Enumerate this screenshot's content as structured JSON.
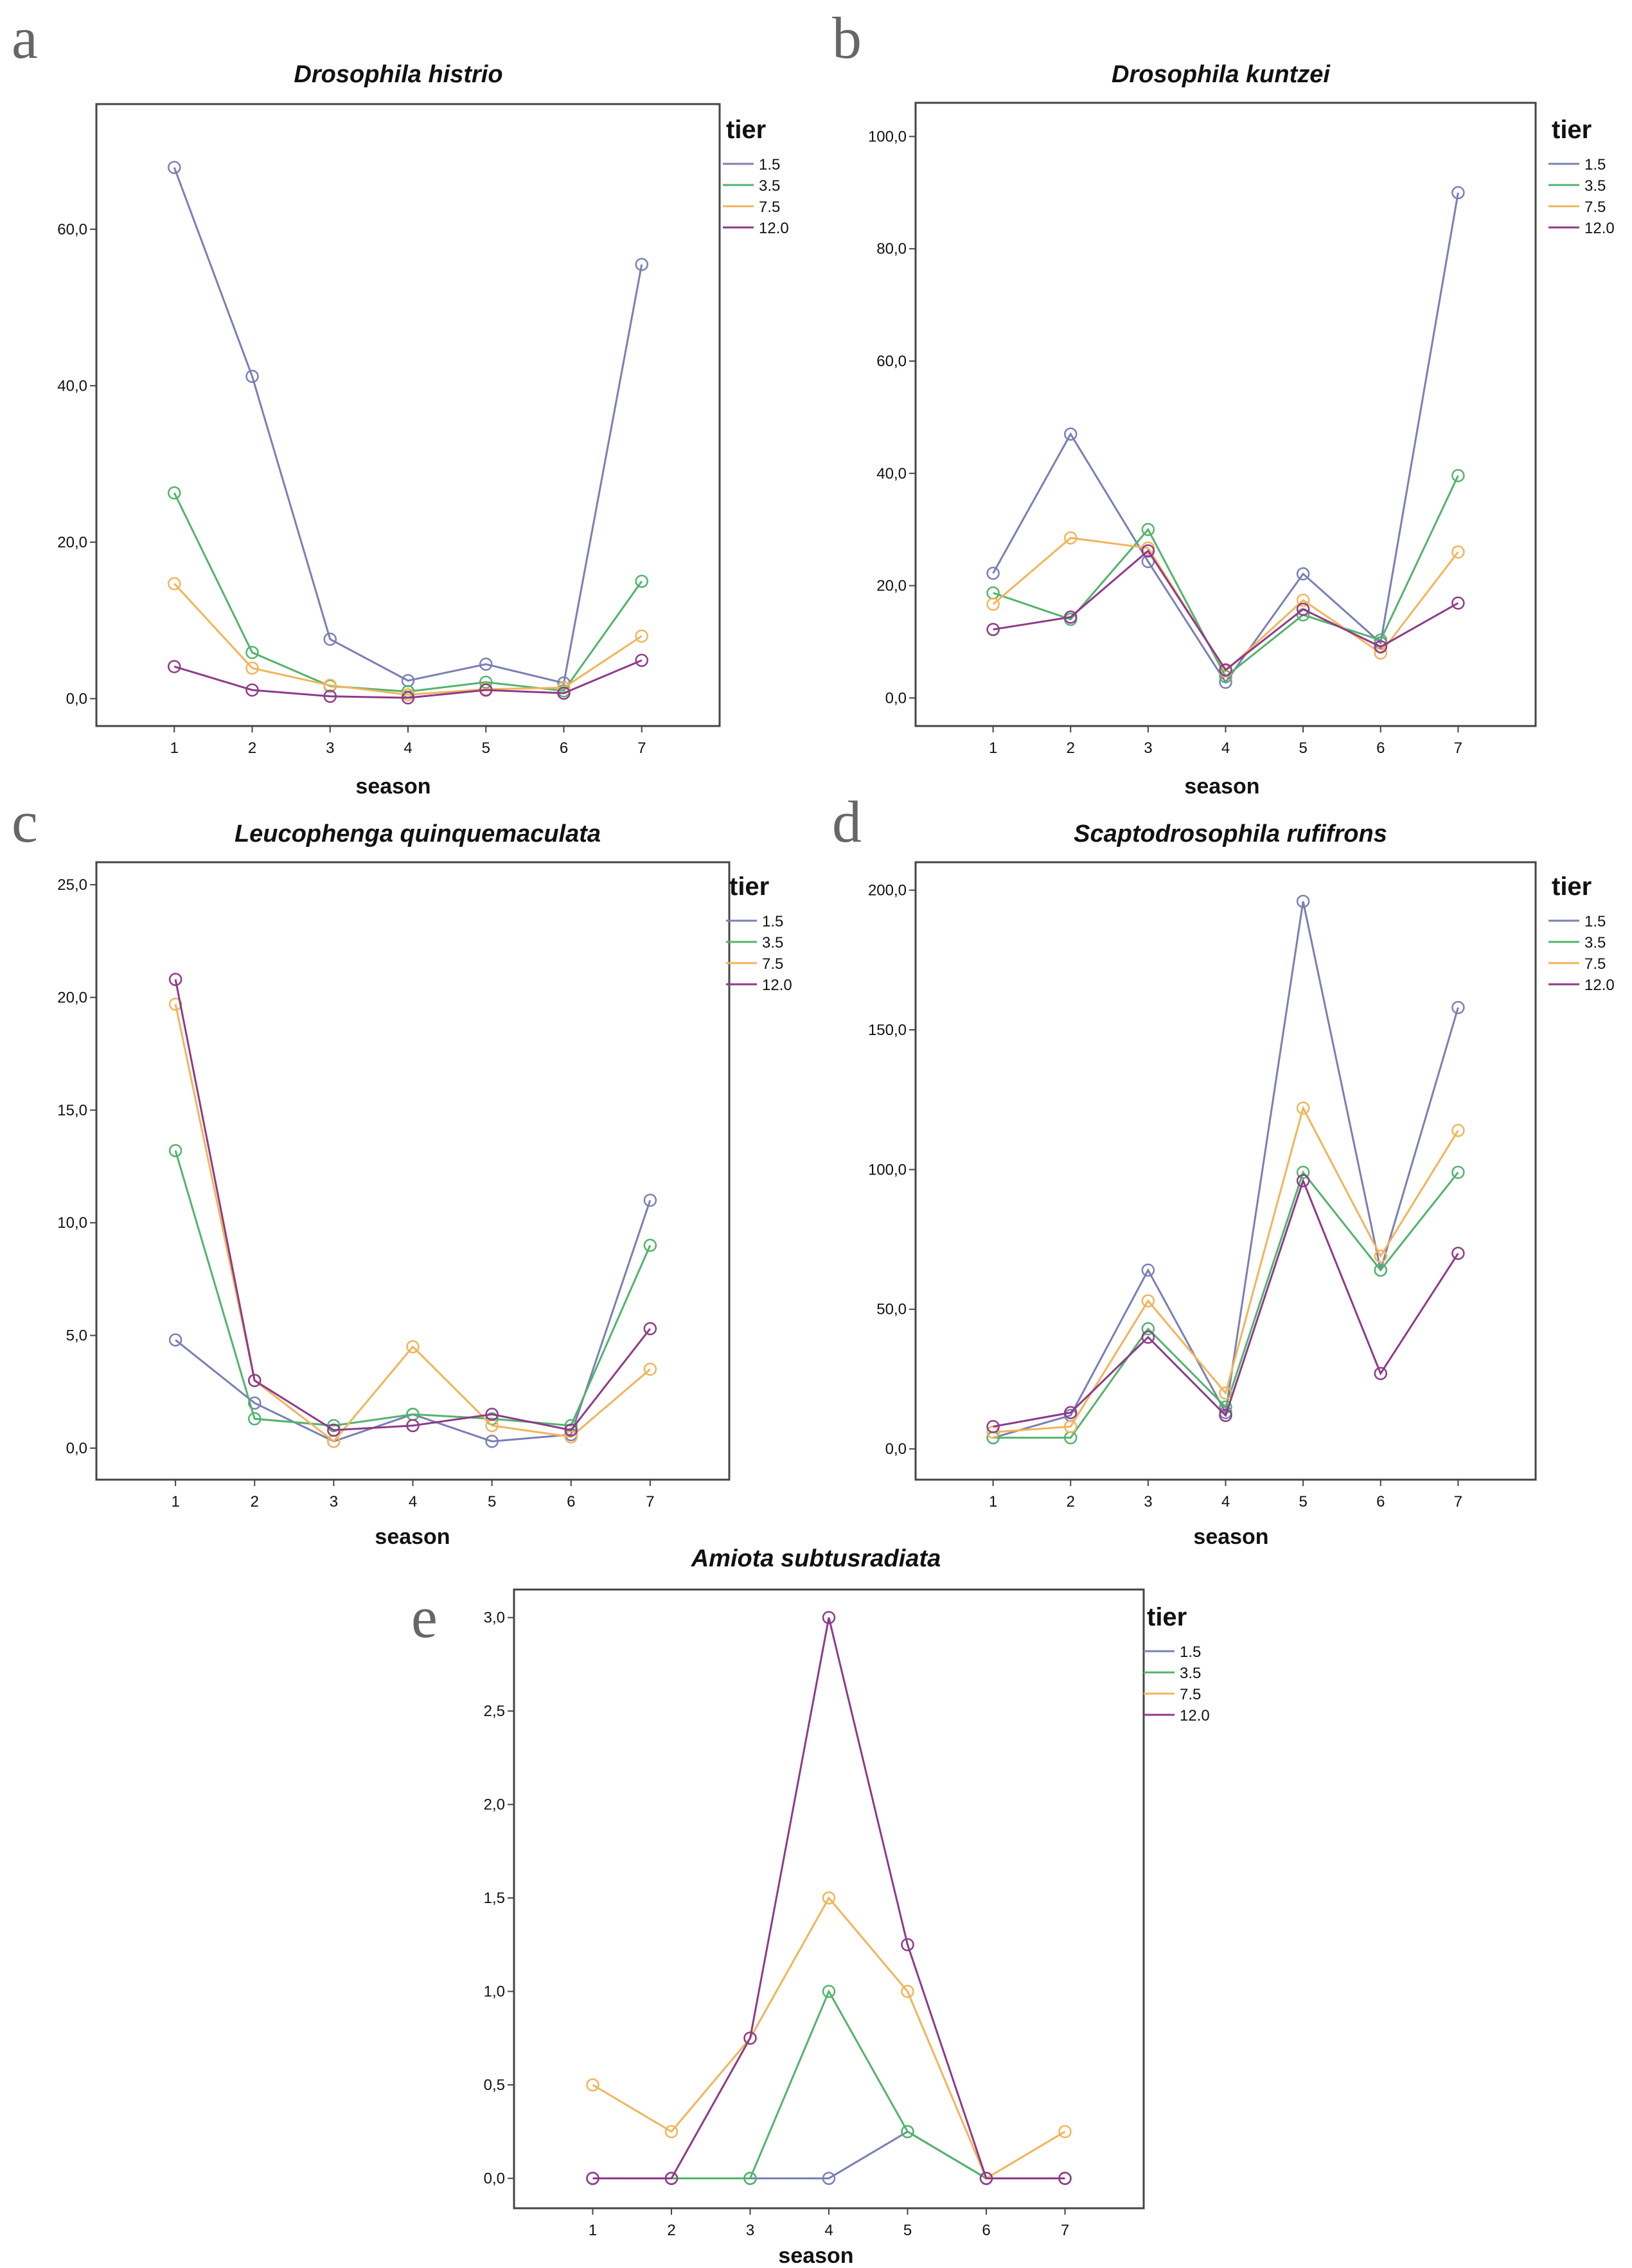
{
  "series_colors": {
    "1.5": "#7b7fb5",
    "3.5": "#52b46c",
    "7.5": "#f2b45a",
    "12.0": "#8e3a8a"
  },
  "chart_data": [
    {
      "panel": "a",
      "type": "line",
      "title": "Drosophila histrio",
      "xlabel": "season",
      "legend_title": "tier",
      "categories": [
        "1",
        "2",
        "3",
        "4",
        "5",
        "6",
        "7"
      ],
      "ylim": [
        -3.5,
        76
      ],
      "yticks": [
        0,
        20,
        40,
        60
      ],
      "ytick_labels": [
        "0,0",
        "20,0",
        "40,0",
        "60,0"
      ],
      "series": [
        {
          "name": "1.5",
          "values": [
            67.9,
            41.2,
            7.6,
            2.3,
            4.4,
            2.0,
            55.5
          ]
        },
        {
          "name": "3.5",
          "values": [
            26.3,
            5.9,
            1.6,
            0.9,
            2.1,
            1.0,
            15.0
          ]
        },
        {
          "name": "7.5",
          "values": [
            14.7,
            3.9,
            1.7,
            0.5,
            1.2,
            1.4,
            8.0
          ]
        },
        {
          "name": "12.0",
          "values": [
            4.1,
            1.1,
            0.3,
            0.1,
            1.1,
            0.7,
            4.9
          ]
        }
      ]
    },
    {
      "panel": "b",
      "type": "line",
      "title": "Drosophila kuntzei",
      "xlabel": "season",
      "legend_title": "tier",
      "categories": [
        "1",
        "2",
        "3",
        "4",
        "5",
        "6",
        "7"
      ],
      "ylim": [
        -5,
        106
      ],
      "yticks": [
        0,
        20,
        40,
        60,
        80,
        100
      ],
      "ytick_labels": [
        "0,0",
        "20,0",
        "40,0",
        "60,0",
        "80,0",
        "100,0"
      ],
      "series": [
        {
          "name": "1.5",
          "values": [
            22.2,
            47.0,
            24.3,
            2.8,
            22.1,
            9.8,
            90.0
          ]
        },
        {
          "name": "3.5",
          "values": [
            18.7,
            14.0,
            30.0,
            3.8,
            14.8,
            10.3,
            39.6
          ]
        },
        {
          "name": "7.5",
          "values": [
            16.7,
            28.5,
            26.7,
            4.8,
            17.4,
            8.0,
            26.0
          ]
        },
        {
          "name": "12.0",
          "values": [
            12.2,
            14.4,
            26.2,
            5.0,
            15.8,
            9.1,
            16.9
          ]
        }
      ]
    },
    {
      "panel": "c",
      "type": "line",
      "title": "Leucophenga quinquemaculata",
      "xlabel": "season",
      "legend_title": "tier",
      "categories": [
        "1",
        "2",
        "3",
        "4",
        "5",
        "6",
        "7"
      ],
      "ylim": [
        -1.4,
        26
      ],
      "yticks": [
        0,
        5,
        10,
        15,
        20,
        25
      ],
      "ytick_labels": [
        "0,0",
        "5,0",
        "10,0",
        "15,0",
        "20,0",
        "25,0"
      ],
      "series": [
        {
          "name": "1.5",
          "values": [
            4.8,
            2.0,
            0.3,
            1.5,
            0.3,
            0.6,
            11.0
          ]
        },
        {
          "name": "3.5",
          "values": [
            13.2,
            1.3,
            1.0,
            1.5,
            1.3,
            1.0,
            9.0
          ]
        },
        {
          "name": "7.5",
          "values": [
            19.7,
            3.0,
            0.3,
            4.5,
            1.0,
            0.5,
            3.5
          ]
        },
        {
          "name": "12.0",
          "values": [
            20.8,
            3.0,
            0.8,
            1.0,
            1.5,
            0.8,
            5.3
          ]
        }
      ]
    },
    {
      "panel": "d",
      "type": "line",
      "title": "Scaptodrosophila rufifrons",
      "xlabel": "season",
      "legend_title": "tier",
      "categories": [
        "1",
        "2",
        "3",
        "4",
        "5",
        "6",
        "7"
      ],
      "ylim": [
        -11,
        210
      ],
      "yticks": [
        0,
        50,
        100,
        150,
        200
      ],
      "ytick_labels": [
        "0,0",
        "50,0",
        "100,0",
        "150,0",
        "200,0"
      ],
      "series": [
        {
          "name": "1.5",
          "values": [
            4.0,
            12.0,
            64.0,
            13.0,
            196.0,
            64.0,
            158.0
          ]
        },
        {
          "name": "3.5",
          "values": [
            4.0,
            4.0,
            43.0,
            15.0,
            99.0,
            64.0,
            99.0
          ]
        },
        {
          "name": "7.5",
          "values": [
            6.0,
            8.0,
            53.0,
            20.0,
            122.0,
            69.0,
            114.0
          ]
        },
        {
          "name": "12.0",
          "values": [
            8.0,
            13.0,
            40.0,
            12.0,
            96.0,
            27.0,
            70.0
          ]
        }
      ]
    },
    {
      "panel": "e",
      "type": "line",
      "title": "Amiota subtusradiata",
      "xlabel": "season",
      "legend_title": "tier",
      "categories": [
        "1",
        "2",
        "3",
        "4",
        "5",
        "6",
        "7"
      ],
      "ylim": [
        -0.16,
        3.15
      ],
      "yticks": [
        0,
        0.5,
        1.0,
        1.5,
        2.0,
        2.5,
        3.0
      ],
      "ytick_labels": [
        "0,0",
        "0,5",
        "1,0",
        "1,5",
        "2,0",
        "2,5",
        "3,0"
      ],
      "series": [
        {
          "name": "1.5",
          "values": [
            0.0,
            0.0,
            0.0,
            0.0,
            0.25,
            0.0,
            0.0
          ]
        },
        {
          "name": "3.5",
          "values": [
            0.0,
            0.0,
            0.0,
            1.0,
            0.25,
            0.0,
            0.0
          ]
        },
        {
          "name": "7.5",
          "values": [
            0.5,
            0.25,
            0.75,
            1.5,
            1.0,
            0.0,
            0.25
          ]
        },
        {
          "name": "12.0",
          "values": [
            0.0,
            0.0,
            0.75,
            3.0,
            1.25,
            0.0,
            0.0
          ]
        }
      ]
    }
  ]
}
